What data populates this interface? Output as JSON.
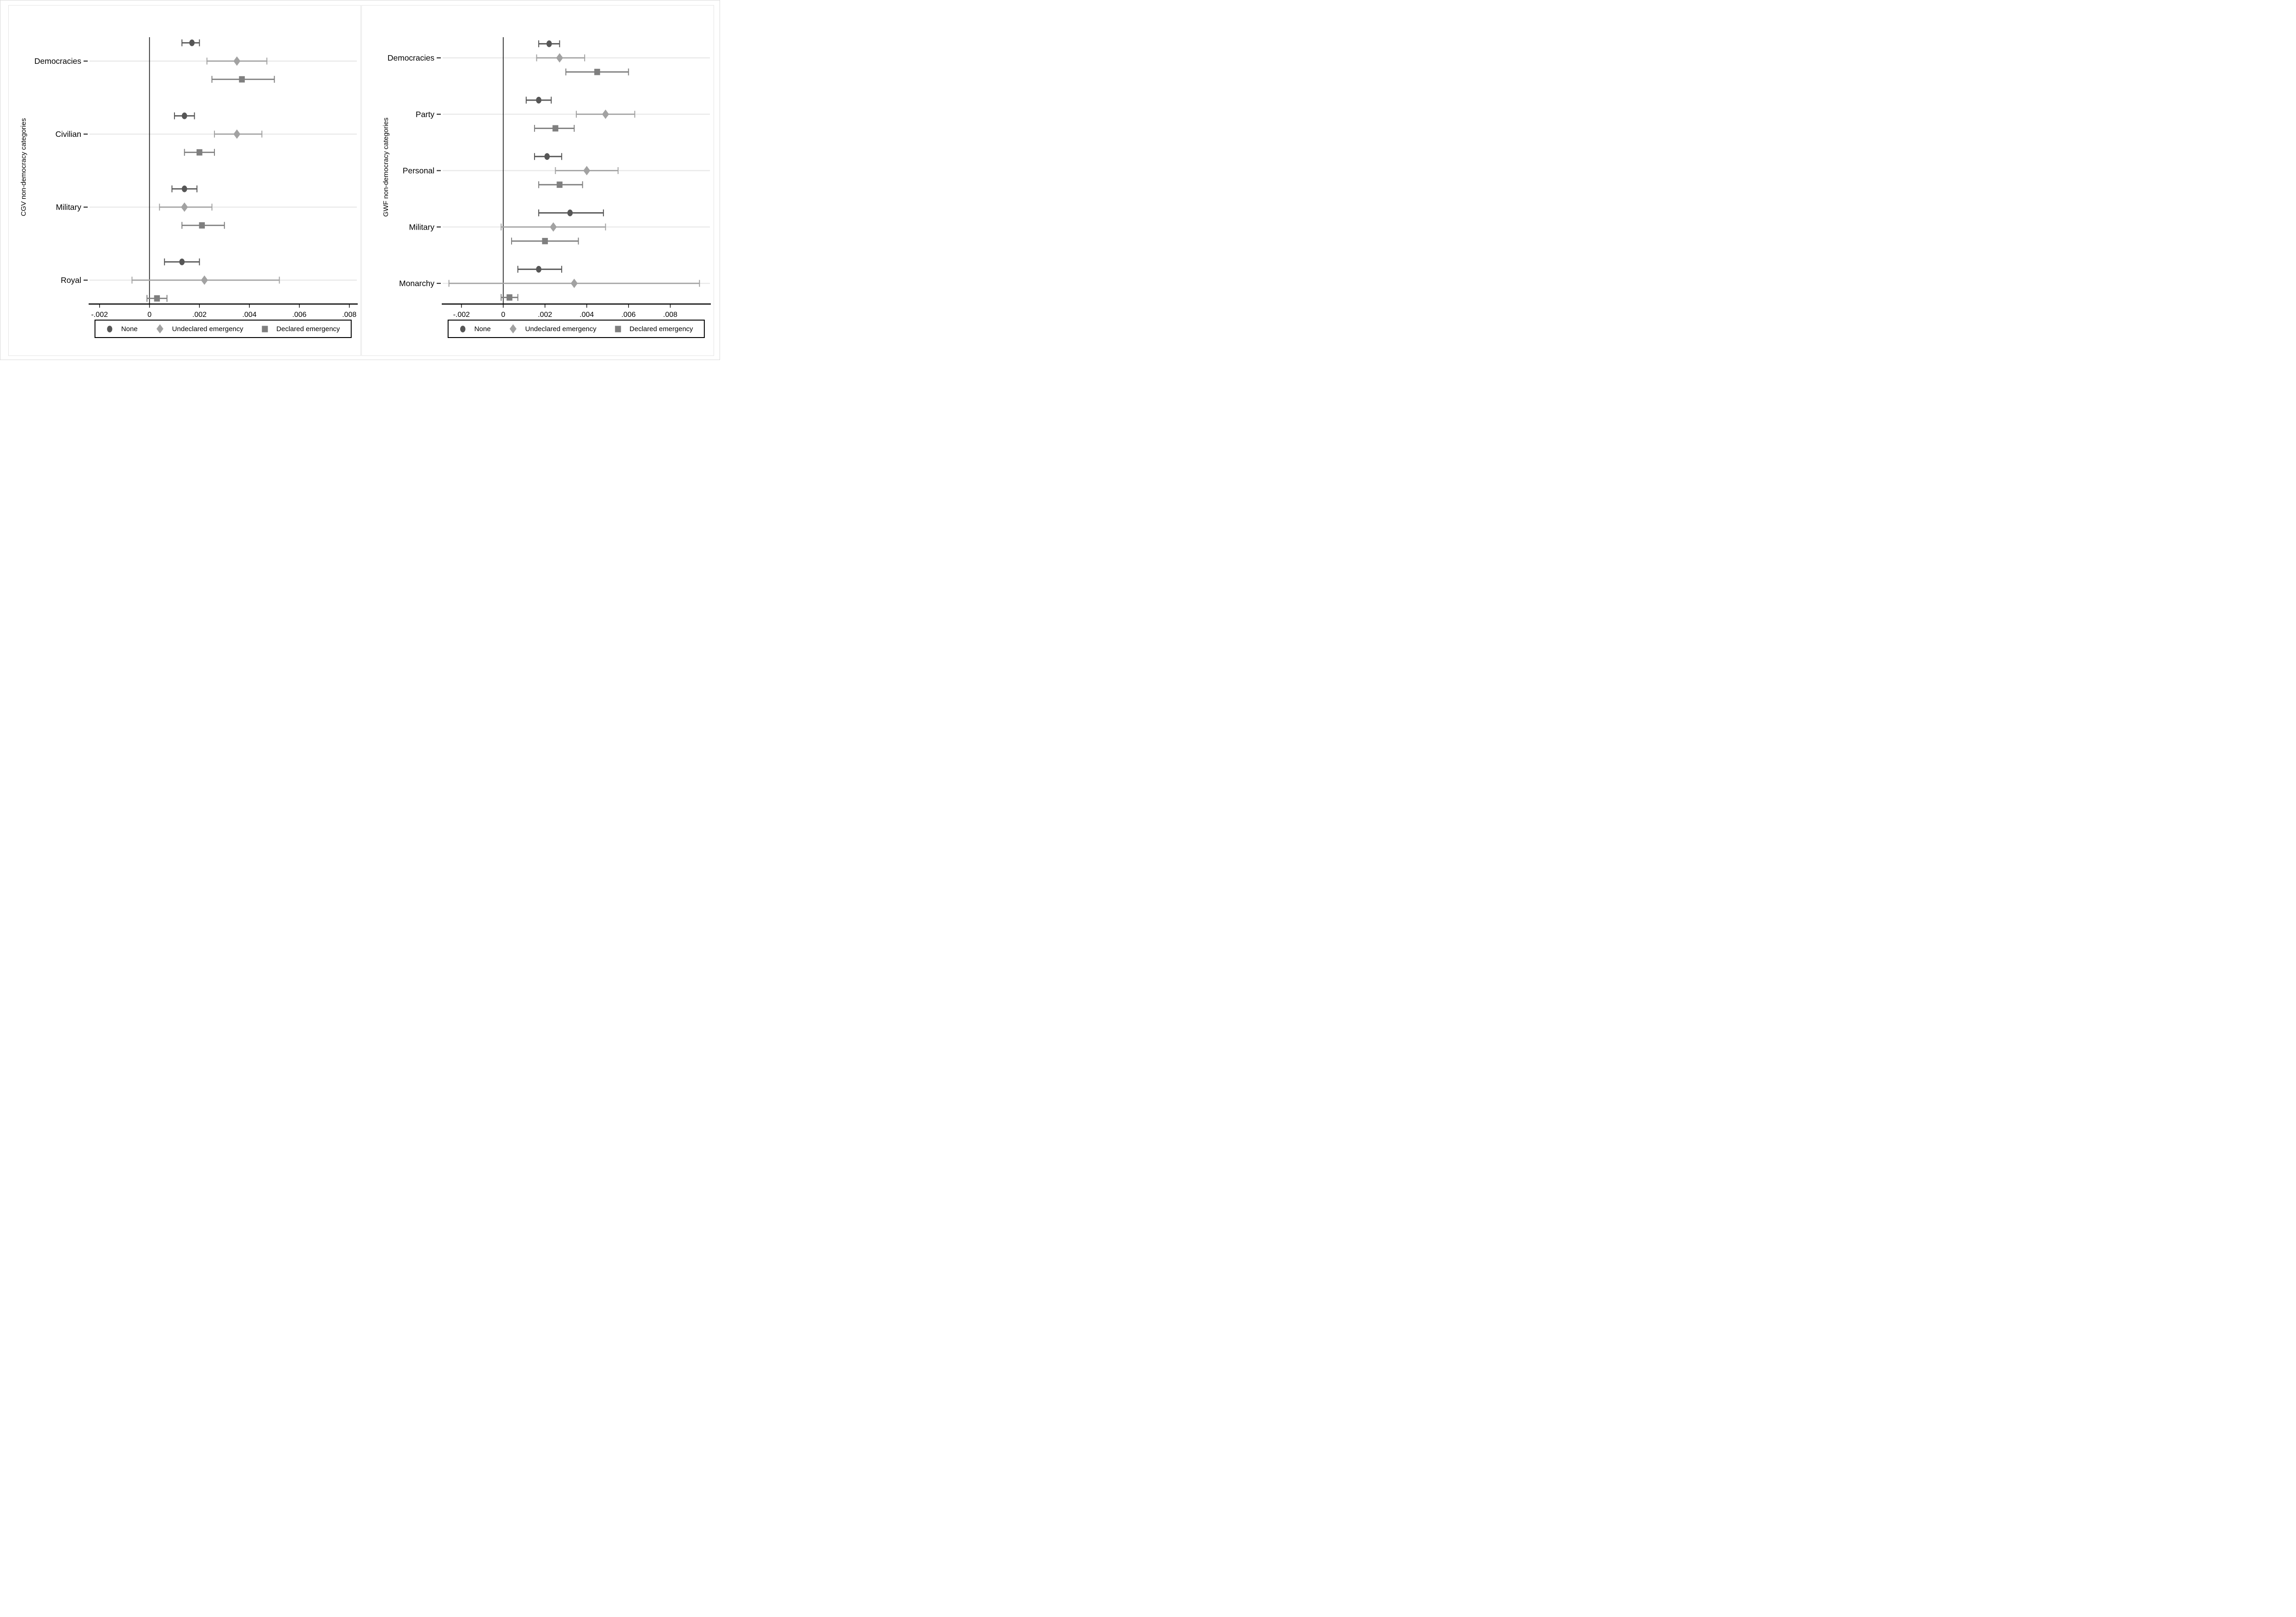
{
  "colors": {
    "background": "#ffffff",
    "page_border": "#d9d9d9",
    "panel_border": "#e4e4e4",
    "axis": "#000000",
    "text": "#000000",
    "gridline": "#e8e8e8",
    "zero_line": "#111111",
    "marker_none": "#565656",
    "marker_undeclared": "#a2a2a2",
    "marker_declared": "#7f7f7f",
    "legend_border": "#000000"
  },
  "legend": {
    "items": [
      {
        "label": "None",
        "marker": "circle"
      },
      {
        "label": "Undeclared emergency",
        "marker": "diamond"
      },
      {
        "label": "Declared emergency",
        "marker": "square"
      }
    ]
  },
  "chart_data": [
    {
      "type": "scatter",
      "variant": "coefficient-dot-whisker",
      "title": "",
      "xlabel": "",
      "ylabel": "CGV non-democracy categories",
      "categories": [
        "Democracies",
        "Civilian",
        "Military",
        "Royal"
      ],
      "xticks": [
        -0.002,
        0,
        0.002,
        0.004,
        0.006,
        0.008
      ],
      "xtick_labels": [
        "-.002",
        "0",
        ".002",
        ".004",
        ".006",
        ".008"
      ],
      "xlim": [
        -0.0024,
        0.0083
      ],
      "grid": "horizontal category gridlines",
      "zero_line": true,
      "legend_position": "bottom",
      "series": [
        {
          "name": "None",
          "marker": "circle",
          "color": "#565656",
          "points": [
            {
              "category": "Democracies",
              "estimate": 0.0017,
              "ci_low": 0.0013,
              "ci_high": 0.002
            },
            {
              "category": "Civilian",
              "estimate": 0.0014,
              "ci_low": 0.001,
              "ci_high": 0.0018
            },
            {
              "category": "Military",
              "estimate": 0.0014,
              "ci_low": 0.0009,
              "ci_high": 0.0019
            },
            {
              "category": "Royal",
              "estimate": 0.0013,
              "ci_low": 0.0006,
              "ci_high": 0.002
            }
          ]
        },
        {
          "name": "Undeclared emergency",
          "marker": "diamond",
          "color": "#a2a2a2",
          "points": [
            {
              "category": "Democracies",
              "estimate": 0.0035,
              "ci_low": 0.0023,
              "ci_high": 0.0047
            },
            {
              "category": "Civilian",
              "estimate": 0.0035,
              "ci_low": 0.0026,
              "ci_high": 0.0045
            },
            {
              "category": "Military",
              "estimate": 0.0014,
              "ci_low": 0.0004,
              "ci_high": 0.0025
            },
            {
              "category": "Royal",
              "estimate": 0.0022,
              "ci_low": -0.0007,
              "ci_high": 0.0052
            }
          ]
        },
        {
          "name": "Declared emergency",
          "marker": "square",
          "color": "#7f7f7f",
          "points": [
            {
              "category": "Democracies",
              "estimate": 0.0037,
              "ci_low": 0.0025,
              "ci_high": 0.005
            },
            {
              "category": "Civilian",
              "estimate": 0.002,
              "ci_low": 0.0014,
              "ci_high": 0.0026
            },
            {
              "category": "Military",
              "estimate": 0.0021,
              "ci_low": 0.0013,
              "ci_high": 0.003
            },
            {
              "category": "Royal",
              "estimate": 0.0003,
              "ci_low": -0.0001,
              "ci_high": 0.0007
            }
          ]
        }
      ]
    },
    {
      "type": "scatter",
      "variant": "coefficient-dot-whisker",
      "title": "",
      "xlabel": "",
      "ylabel": "GWF non-democracy categories",
      "categories": [
        "Democracies",
        "Party",
        "Personal",
        "Military",
        "Monarchy"
      ],
      "xticks": [
        -0.002,
        0,
        0.002,
        0.004,
        0.006,
        0.008
      ],
      "xtick_labels": [
        "-.002",
        "0",
        ".002",
        ".004",
        ".006",
        ".008"
      ],
      "xlim": [
        -0.0029,
        0.0099
      ],
      "grid": "horizontal category gridlines",
      "zero_line": true,
      "legend_position": "bottom",
      "series": [
        {
          "name": "None",
          "marker": "circle",
          "color": "#565656",
          "points": [
            {
              "category": "Democracies",
              "estimate": 0.0022,
              "ci_low": 0.0017,
              "ci_high": 0.0027
            },
            {
              "category": "Party",
              "estimate": 0.0017,
              "ci_low": 0.0011,
              "ci_high": 0.0023
            },
            {
              "category": "Personal",
              "estimate": 0.0021,
              "ci_low": 0.0015,
              "ci_high": 0.0028
            },
            {
              "category": "Military",
              "estimate": 0.0032,
              "ci_low": 0.0017,
              "ci_high": 0.0048
            },
            {
              "category": "Monarchy",
              "estimate": 0.0017,
              "ci_low": 0.0007,
              "ci_high": 0.0028
            }
          ]
        },
        {
          "name": "Undeclared emergency",
          "marker": "diamond",
          "color": "#a2a2a2",
          "points": [
            {
              "category": "Democracies",
              "estimate": 0.0027,
              "ci_low": 0.0016,
              "ci_high": 0.0039
            },
            {
              "category": "Party",
              "estimate": 0.0049,
              "ci_low": 0.0035,
              "ci_high": 0.0063
            },
            {
              "category": "Personal",
              "estimate": 0.004,
              "ci_low": 0.0025,
              "ci_high": 0.0055
            },
            {
              "category": "Military",
              "estimate": 0.0024,
              "ci_low": -0.0001,
              "ci_high": 0.0049
            },
            {
              "category": "Monarchy",
              "estimate": 0.0034,
              "ci_low": -0.0026,
              "ci_high": 0.0094
            }
          ]
        },
        {
          "name": "Declared emergency",
          "marker": "square",
          "color": "#7f7f7f",
          "points": [
            {
              "category": "Democracies",
              "estimate": 0.0045,
              "ci_low": 0.003,
              "ci_high": 0.006
            },
            {
              "category": "Party",
              "estimate": 0.0025,
              "ci_low": 0.0015,
              "ci_high": 0.0034
            },
            {
              "category": "Personal",
              "estimate": 0.0027,
              "ci_low": 0.0017,
              "ci_high": 0.0038
            },
            {
              "category": "Military",
              "estimate": 0.002,
              "ci_low": 0.0004,
              "ci_high": 0.0036
            },
            {
              "category": "Monarchy",
              "estimate": 0.0003,
              "ci_low": -0.0001,
              "ci_high": 0.0007
            }
          ]
        }
      ]
    }
  ]
}
